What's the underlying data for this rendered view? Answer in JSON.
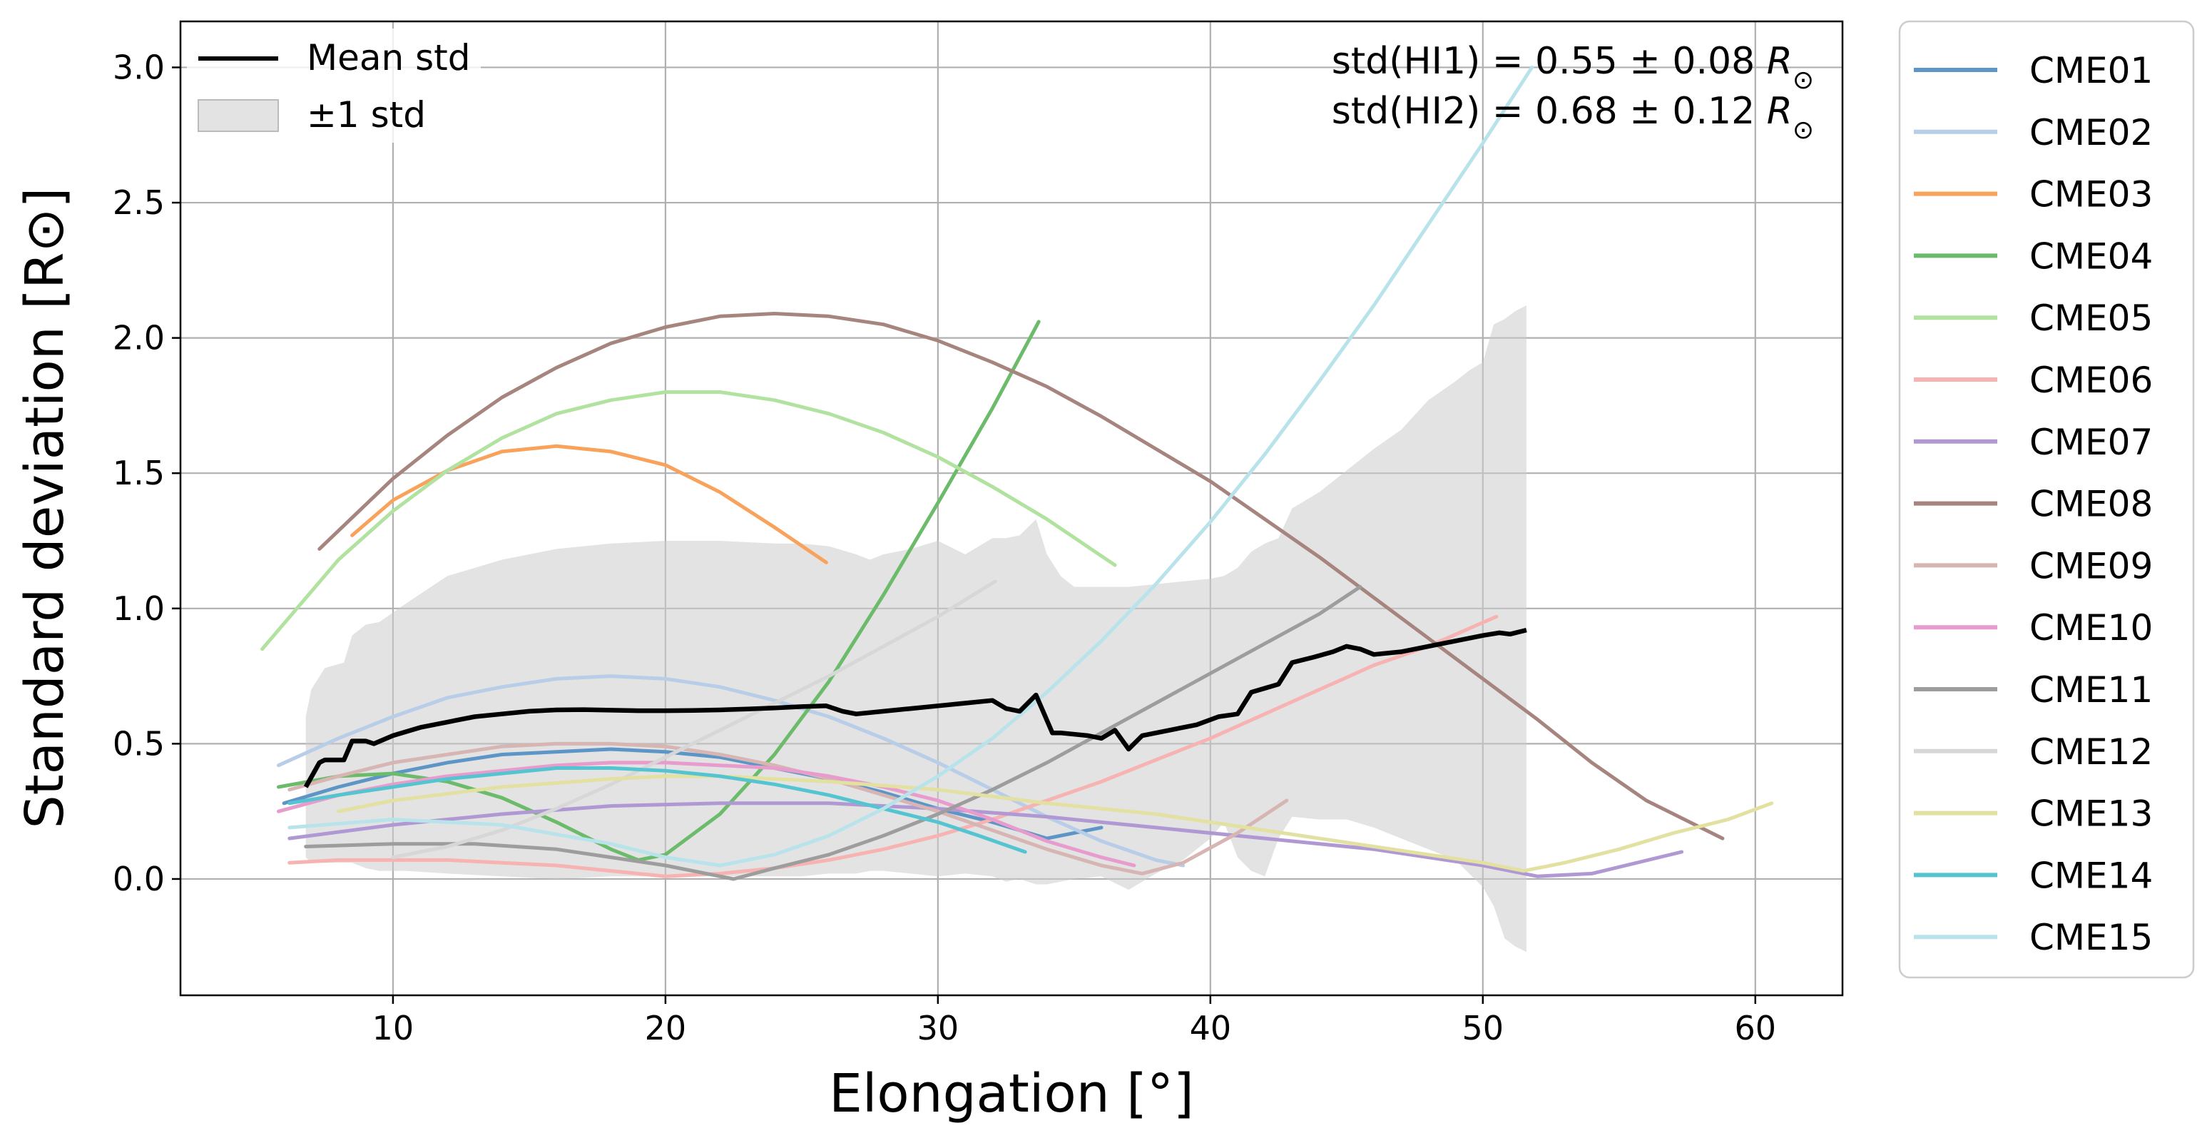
{
  "chart_data": {
    "type": "line",
    "title": "",
    "xlabel": "Elongation [°]",
    "ylabel": "Standard deviation [R⊙]",
    "xlim": [
      2.2,
      63.2
    ],
    "ylim": [
      -0.43,
      3.17
    ],
    "xticks": [
      10,
      20,
      30,
      40,
      50,
      60
    ],
    "yticks": [
      0.0,
      0.5,
      1.0,
      1.5,
      2.0,
      2.5,
      3.0
    ],
    "xtick_labels": [
      "10",
      "20",
      "30",
      "40",
      "50",
      "60"
    ],
    "ytick_labels": [
      "0.0",
      "0.5",
      "1.0",
      "1.5",
      "2.0",
      "2.5",
      "3.0"
    ],
    "grid": true,
    "annotations": {
      "hi1": {
        "prefix": "std(HI1) = 0.55 ± 0.08 ",
        "unit": "R",
        "unit_sub": "⊙"
      },
      "hi2": {
        "prefix": "std(HI2) = 0.68 ± 0.12 ",
        "unit": "R",
        "unit_sub": "⊙"
      }
    },
    "mean_legend": [
      {
        "label": "Mean std",
        "kind": "line",
        "color": "#000000"
      },
      {
        "label": "±1 std",
        "kind": "patch",
        "color": "#cccccc"
      }
    ],
    "mean": {
      "name": "Mean std",
      "color": "#000000",
      "x": [
        6.8,
        7.3,
        7.5,
        8.2,
        8.5,
        9.0,
        9.3,
        10,
        11,
        12,
        13,
        14,
        15,
        16,
        17,
        18,
        19,
        20,
        21,
        22,
        23,
        24,
        25,
        25.9,
        26.5,
        27,
        28,
        29,
        30,
        31,
        32,
        32.5,
        33.0,
        33.6,
        34.2,
        34.5,
        35.5,
        36.0,
        36.5,
        37.0,
        37.5,
        38.5,
        39.5,
        40.3,
        41.0,
        41.5,
        42.5,
        43.0,
        43.8,
        44.5,
        45.0,
        45.5,
        46.0,
        47.0,
        48.0,
        49.0,
        50.0,
        50.6,
        51.0,
        51.6
      ],
      "y": [
        0.34,
        0.43,
        0.44,
        0.44,
        0.51,
        0.51,
        0.5,
        0.53,
        0.56,
        0.58,
        0.6,
        0.61,
        0.62,
        0.625,
        0.626,
        0.624,
        0.622,
        0.622,
        0.623,
        0.625,
        0.628,
        0.632,
        0.637,
        0.64,
        0.62,
        0.61,
        0.62,
        0.63,
        0.64,
        0.65,
        0.66,
        0.63,
        0.62,
        0.68,
        0.54,
        0.54,
        0.53,
        0.52,
        0.55,
        0.48,
        0.53,
        0.55,
        0.57,
        0.6,
        0.61,
        0.69,
        0.72,
        0.8,
        0.82,
        0.84,
        0.86,
        0.85,
        0.83,
        0.84,
        0.86,
        0.88,
        0.9,
        0.91,
        0.905,
        0.92
      ]
    },
    "std_band": {
      "name": "±1 std",
      "color": "#cccccc",
      "x": [
        6.8,
        7.0,
        7.5,
        8.2,
        8.5,
        9.0,
        9.5,
        10.5,
        12,
        14,
        16,
        18,
        20,
        22,
        24,
        25,
        26,
        27,
        27.5,
        28,
        29,
        30,
        31,
        32,
        32.5,
        33.0,
        33.6,
        34.0,
        34.5,
        35.0,
        36,
        37,
        38,
        39,
        40,
        40.5,
        41.0,
        41.5,
        42.0,
        42.5,
        43.0,
        44,
        45,
        46,
        47,
        48,
        49,
        49.5,
        50.0,
        50.4,
        50.8,
        51.2,
        51.6
      ],
      "upper": [
        0.6,
        0.7,
        0.78,
        0.8,
        0.9,
        0.94,
        0.95,
        1.02,
        1.12,
        1.18,
        1.22,
        1.24,
        1.25,
        1.25,
        1.24,
        1.24,
        1.23,
        1.2,
        1.18,
        1.2,
        1.22,
        1.25,
        1.2,
        1.26,
        1.26,
        1.27,
        1.33,
        1.2,
        1.12,
        1.08,
        1.08,
        1.08,
        1.09,
        1.1,
        1.11,
        1.12,
        1.15,
        1.21,
        1.24,
        1.26,
        1.37,
        1.43,
        1.51,
        1.59,
        1.66,
        1.77,
        1.84,
        1.88,
        1.91,
        2.05,
        2.07,
        2.1,
        2.12
      ],
      "lower": [
        0.08,
        0.06,
        0.06,
        0.06,
        0.06,
        0.04,
        0.03,
        0.03,
        0.02,
        0.01,
        0.0,
        0.01,
        0.01,
        0.01,
        0.01,
        0.01,
        0.02,
        0.02,
        0.03,
        0.03,
        0.02,
        0.01,
        0.02,
        0.01,
        -0.01,
        0.0,
        -0.02,
        -0.02,
        -0.01,
        0.0,
        0.01,
        -0.04,
        0.02,
        0.07,
        0.15,
        0.21,
        0.08,
        0.03,
        0.01,
        0.15,
        0.23,
        0.22,
        0.22,
        0.19,
        0.15,
        0.11,
        0.07,
        0.02,
        -0.03,
        -0.1,
        -0.22,
        -0.25,
        -0.27
      ]
    },
    "series": [
      {
        "name": "CME01",
        "color": "#5d95c6",
        "x": [
          6.0,
          8,
          10,
          12,
          14,
          16,
          18,
          20,
          22,
          24,
          26,
          28,
          30,
          32,
          34,
          36.0
        ],
        "y": [
          0.28,
          0.34,
          0.39,
          0.43,
          0.46,
          0.47,
          0.48,
          0.47,
          0.45,
          0.41,
          0.37,
          0.32,
          0.26,
          0.21,
          0.15,
          0.19
        ]
      },
      {
        "name": "CME02",
        "color": "#b8cde8",
        "x": [
          5.8,
          8,
          10,
          12,
          14,
          16,
          18,
          20,
          22,
          24,
          26,
          28,
          30,
          32,
          34,
          36,
          38,
          39.0
        ],
        "y": [
          0.42,
          0.52,
          0.6,
          0.67,
          0.71,
          0.74,
          0.75,
          0.74,
          0.71,
          0.66,
          0.6,
          0.52,
          0.43,
          0.33,
          0.23,
          0.14,
          0.07,
          0.05
        ]
      },
      {
        "name": "CME03",
        "color": "#f9a25b",
        "x": [
          8.5,
          10,
          12,
          14,
          16,
          18,
          20,
          22,
          24,
          25.9
        ],
        "y": [
          1.27,
          1.4,
          1.51,
          1.58,
          1.6,
          1.58,
          1.53,
          1.43,
          1.3,
          1.17
        ]
      },
      {
        "name": "CME04",
        "color": "#6bbb6a",
        "x": [
          5.8,
          8,
          10,
          12,
          14,
          16,
          18,
          19,
          20,
          22,
          24,
          26,
          28,
          30,
          32,
          33.7
        ],
        "y": [
          0.34,
          0.38,
          0.39,
          0.36,
          0.3,
          0.21,
          0.11,
          0.07,
          0.09,
          0.24,
          0.46,
          0.73,
          1.05,
          1.39,
          1.74,
          2.06
        ]
      },
      {
        "name": "CME05",
        "color": "#b1e2a0",
        "x": [
          5.2,
          8,
          10,
          12,
          14,
          16,
          18,
          20,
          22,
          24,
          26,
          28,
          30,
          32,
          34,
          36.5
        ],
        "y": [
          0.85,
          1.18,
          1.36,
          1.51,
          1.63,
          1.72,
          1.77,
          1.8,
          1.8,
          1.77,
          1.72,
          1.65,
          1.56,
          1.45,
          1.33,
          1.16
        ]
      },
      {
        "name": "CME06",
        "color": "#f7b2b2",
        "x": [
          6.2,
          8,
          10,
          12,
          14,
          16,
          18,
          20,
          22,
          24,
          26,
          28,
          30,
          32,
          34,
          36,
          38,
          40,
          42,
          44,
          46,
          48,
          50.5
        ],
        "y": [
          0.06,
          0.07,
          0.07,
          0.07,
          0.06,
          0.05,
          0.03,
          0.01,
          0.02,
          0.04,
          0.07,
          0.11,
          0.16,
          0.22,
          0.29,
          0.36,
          0.44,
          0.52,
          0.61,
          0.7,
          0.79,
          0.86,
          0.97
        ]
      },
      {
        "name": "CME07",
        "color": "#b099d3",
        "x": [
          6.2,
          10,
          14,
          18,
          22,
          26,
          30,
          34,
          38,
          42,
          46,
          50,
          52,
          54,
          57.3
        ],
        "y": [
          0.15,
          0.2,
          0.24,
          0.27,
          0.28,
          0.28,
          0.26,
          0.23,
          0.19,
          0.15,
          0.11,
          0.05,
          0.01,
          0.02,
          0.1
        ]
      },
      {
        "name": "CME08",
        "color": "#a7857f",
        "x": [
          7.3,
          10,
          12,
          14,
          16,
          18,
          20,
          22,
          24,
          26,
          28,
          30,
          32,
          34,
          36,
          38,
          40,
          42,
          44,
          46,
          48,
          50,
          52,
          54,
          56,
          58.8
        ],
        "y": [
          1.22,
          1.48,
          1.64,
          1.78,
          1.89,
          1.98,
          2.04,
          2.08,
          2.09,
          2.08,
          2.05,
          1.99,
          1.91,
          1.82,
          1.71,
          1.59,
          1.47,
          1.33,
          1.19,
          1.04,
          0.89,
          0.74,
          0.59,
          0.43,
          0.29,
          0.15
        ]
      },
      {
        "name": "CME09",
        "color": "#d6b5b3",
        "x": [
          6.2,
          8,
          10,
          12,
          14,
          16,
          18,
          20,
          22,
          24,
          26,
          28,
          30,
          32,
          34,
          36,
          37.5,
          39,
          41,
          42.8
        ],
        "y": [
          0.33,
          0.38,
          0.43,
          0.46,
          0.49,
          0.5,
          0.5,
          0.49,
          0.46,
          0.42,
          0.37,
          0.31,
          0.25,
          0.18,
          0.11,
          0.05,
          0.02,
          0.06,
          0.17,
          0.29
        ]
      },
      {
        "name": "CME10",
        "color": "#e79ccd",
        "x": [
          5.8,
          8,
          10,
          12,
          14,
          16,
          18,
          20,
          22,
          24,
          26,
          28,
          30,
          32,
          34,
          36,
          37.2
        ],
        "y": [
          0.25,
          0.31,
          0.35,
          0.38,
          0.4,
          0.42,
          0.43,
          0.43,
          0.42,
          0.41,
          0.38,
          0.34,
          0.29,
          0.22,
          0.14,
          0.08,
          0.05
        ]
      },
      {
        "name": "CME11",
        "color": "#9d9d9d",
        "x": [
          6.8,
          10,
          13,
          16,
          18,
          20,
          22,
          22.5,
          24,
          26,
          28,
          30,
          32,
          34,
          36,
          38,
          40,
          42,
          44,
          45.5
        ],
        "y": [
          0.12,
          0.13,
          0.13,
          0.11,
          0.08,
          0.05,
          0.01,
          0.0,
          0.04,
          0.09,
          0.16,
          0.24,
          0.33,
          0.43,
          0.54,
          0.65,
          0.76,
          0.87,
          0.98,
          1.08
        ]
      },
      {
        "name": "CME12",
        "color": "#d7d7d7",
        "x": [
          10,
          12,
          14,
          16,
          18,
          20,
          22,
          24,
          26,
          28,
          30,
          32.1
        ],
        "y": [
          0.08,
          0.12,
          0.18,
          0.26,
          0.35,
          0.45,
          0.55,
          0.65,
          0.75,
          0.86,
          0.97,
          1.1
        ]
      },
      {
        "name": "CME13",
        "color": "#e2e1a1",
        "x": [
          8,
          10,
          14,
          18,
          20,
          22,
          26,
          30,
          34,
          38,
          42,
          46,
          50,
          51.5,
          53,
          55,
          57,
          59,
          60.6
        ],
        "y": [
          0.25,
          0.29,
          0.34,
          0.37,
          0.38,
          0.38,
          0.36,
          0.33,
          0.28,
          0.24,
          0.18,
          0.12,
          0.06,
          0.03,
          0.06,
          0.11,
          0.17,
          0.22,
          0.28
        ]
      },
      {
        "name": "CME14",
        "color": "#55c4d1",
        "x": [
          6.2,
          8,
          10,
          12,
          14,
          16,
          18,
          20,
          22,
          24,
          26,
          28,
          30,
          31.5,
          33.2
        ],
        "y": [
          0.28,
          0.31,
          0.34,
          0.37,
          0.39,
          0.41,
          0.41,
          0.4,
          0.38,
          0.35,
          0.31,
          0.26,
          0.21,
          0.16,
          0.1
        ]
      },
      {
        "name": "CME15",
        "color": "#b8e3ea",
        "x": [
          6.2,
          10,
          14,
          18,
          20,
          22,
          24,
          26,
          28,
          30,
          32,
          34,
          36,
          38,
          40,
          42,
          44,
          46,
          48,
          50,
          51.8
        ],
        "y": [
          0.19,
          0.22,
          0.2,
          0.13,
          0.08,
          0.05,
          0.09,
          0.16,
          0.26,
          0.38,
          0.52,
          0.69,
          0.88,
          1.09,
          1.32,
          1.57,
          1.84,
          2.12,
          2.42,
          2.72,
          3.0
        ]
      }
    ]
  }
}
